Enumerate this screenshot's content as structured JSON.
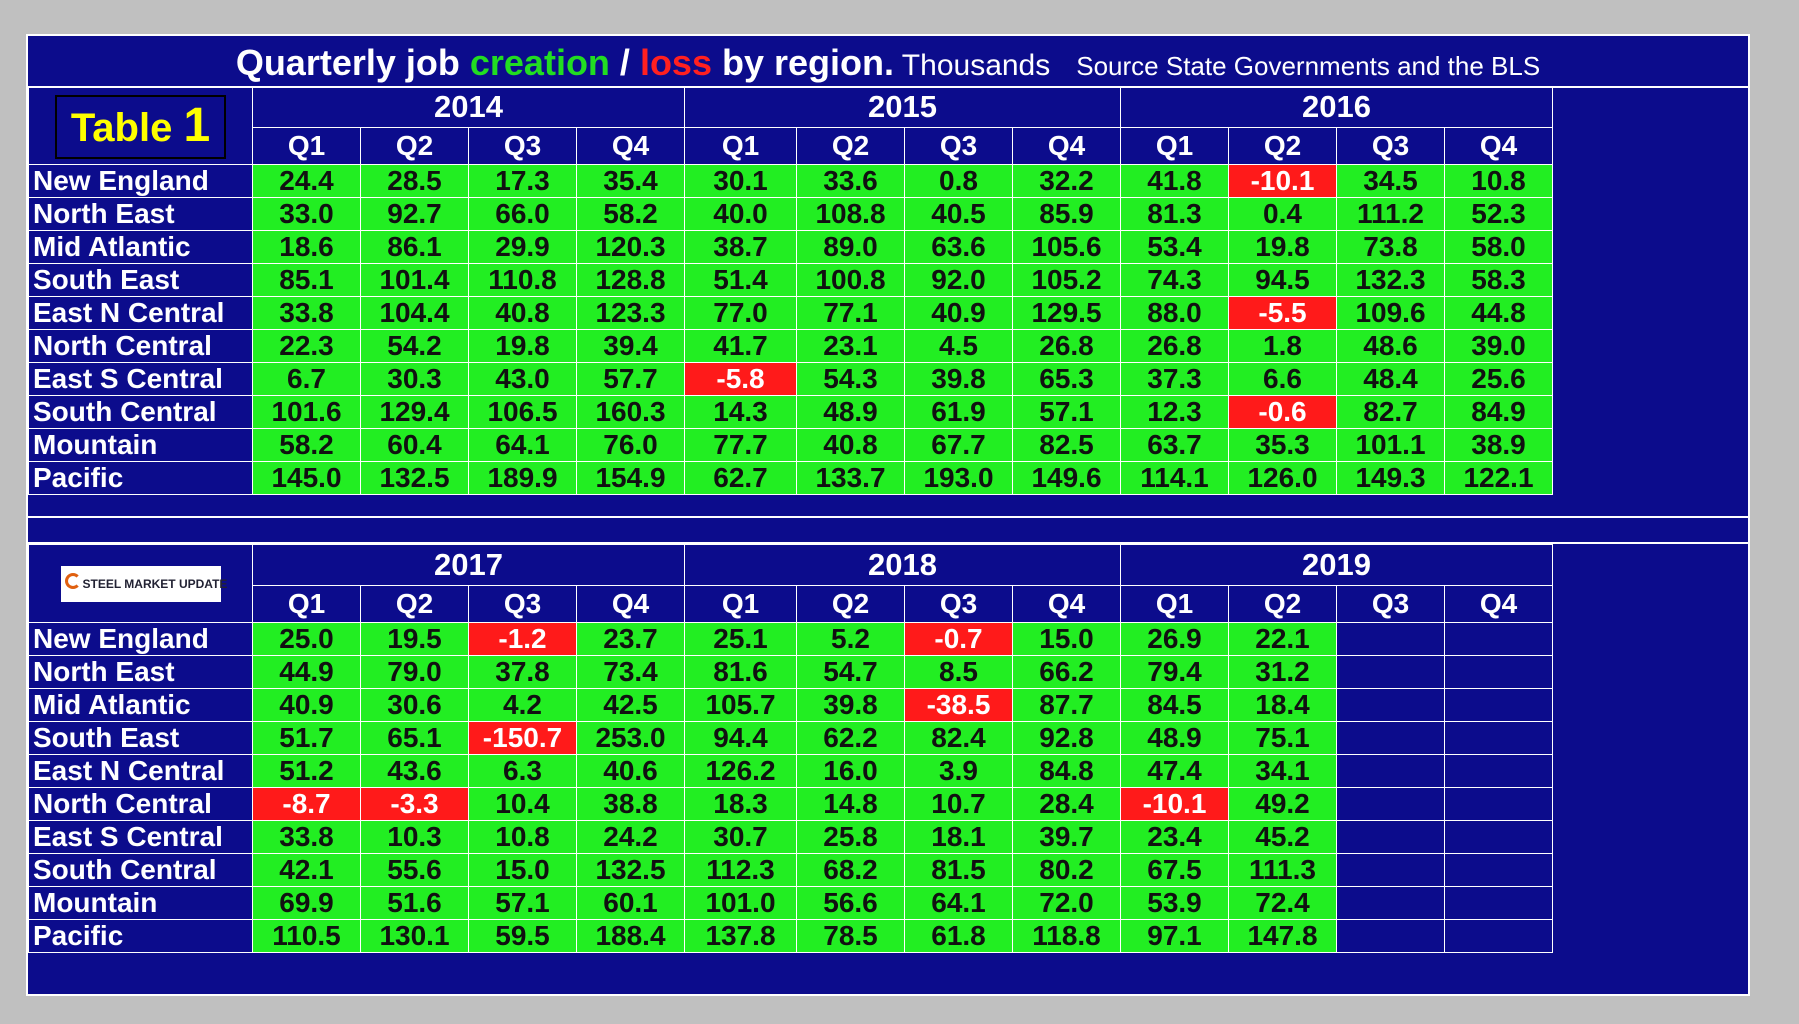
{
  "title": {
    "part1": "Quarterly job ",
    "creation": "creation",
    "slash": " / ",
    "loss": "loss",
    "part2": " by region.",
    "units": " Thousands",
    "source": "Source State Governments and the BLS"
  },
  "colors": {
    "background": "#0c0c8c",
    "positive": "#22ee22",
    "negative": "#ff1a1a",
    "badge_text": "#ffff00"
  },
  "badge": {
    "label": "Table",
    "number": "1"
  },
  "logo": {
    "text": "STEEL MARKET UPDATE"
  },
  "quarters": [
    "Q1",
    "Q2",
    "Q3",
    "Q4"
  ],
  "top": {
    "years": [
      "2014",
      "2015",
      "2016"
    ],
    "rows": [
      {
        "region": "New England",
        "values": [
          "24.4",
          "28.5",
          "17.3",
          "35.4",
          "30.1",
          "33.6",
          "0.8",
          "32.2",
          "41.8",
          "-10.1",
          "34.5",
          "10.8"
        ]
      },
      {
        "region": "North East",
        "values": [
          "33.0",
          "92.7",
          "66.0",
          "58.2",
          "40.0",
          "108.8",
          "40.5",
          "85.9",
          "81.3",
          "0.4",
          "111.2",
          "52.3"
        ]
      },
      {
        "region": "Mid Atlantic",
        "values": [
          "18.6",
          "86.1",
          "29.9",
          "120.3",
          "38.7",
          "89.0",
          "63.6",
          "105.6",
          "53.4",
          "19.8",
          "73.8",
          "58.0"
        ]
      },
      {
        "region": "South East",
        "values": [
          "85.1",
          "101.4",
          "110.8",
          "128.8",
          "51.4",
          "100.8",
          "92.0",
          "105.2",
          "74.3",
          "94.5",
          "132.3",
          "58.3"
        ]
      },
      {
        "region": "East N Central",
        "values": [
          "33.8",
          "104.4",
          "40.8",
          "123.3",
          "77.0",
          "77.1",
          "40.9",
          "129.5",
          "88.0",
          "-5.5",
          "109.6",
          "44.8"
        ]
      },
      {
        "region": "North Central",
        "values": [
          "22.3",
          "54.2",
          "19.8",
          "39.4",
          "41.7",
          "23.1",
          "4.5",
          "26.8",
          "26.8",
          "1.8",
          "48.6",
          "39.0"
        ]
      },
      {
        "region": "East S Central",
        "values": [
          "6.7",
          "30.3",
          "43.0",
          "57.7",
          "-5.8",
          "54.3",
          "39.8",
          "65.3",
          "37.3",
          "6.6",
          "48.4",
          "25.6"
        ]
      },
      {
        "region": "South Central",
        "values": [
          "101.6",
          "129.4",
          "106.5",
          "160.3",
          "14.3",
          "48.9",
          "61.9",
          "57.1",
          "12.3",
          "-0.6",
          "82.7",
          "84.9"
        ]
      },
      {
        "region": "Mountain",
        "values": [
          "58.2",
          "60.4",
          "64.1",
          "76.0",
          "77.7",
          "40.8",
          "67.7",
          "82.5",
          "63.7",
          "35.3",
          "101.1",
          "38.9"
        ]
      },
      {
        "region": "Pacific",
        "values": [
          "145.0",
          "132.5",
          "189.9",
          "154.9",
          "62.7",
          "133.7",
          "193.0",
          "149.6",
          "114.1",
          "126.0",
          "149.3",
          "122.1"
        ]
      }
    ]
  },
  "bottom": {
    "years": [
      "2017",
      "2018",
      "2019"
    ],
    "rows": [
      {
        "region": "New England",
        "values": [
          "25.0",
          "19.5",
          "-1.2",
          "23.7",
          "25.1",
          "5.2",
          "-0.7",
          "15.0",
          "26.9",
          "22.1",
          "",
          ""
        ]
      },
      {
        "region": "North East",
        "values": [
          "44.9",
          "79.0",
          "37.8",
          "73.4",
          "81.6",
          "54.7",
          "8.5",
          "66.2",
          "79.4",
          "31.2",
          "",
          ""
        ]
      },
      {
        "region": "Mid Atlantic",
        "values": [
          "40.9",
          "30.6",
          "4.2",
          "42.5",
          "105.7",
          "39.8",
          "-38.5",
          "87.7",
          "84.5",
          "18.4",
          "",
          ""
        ]
      },
      {
        "region": "South East",
        "values": [
          "51.7",
          "65.1",
          "-150.7",
          "253.0",
          "94.4",
          "62.2",
          "82.4",
          "92.8",
          "48.9",
          "75.1",
          "",
          ""
        ]
      },
      {
        "region": "East N Central",
        "values": [
          "51.2",
          "43.6",
          "6.3",
          "40.6",
          "126.2",
          "16.0",
          "3.9",
          "84.8",
          "47.4",
          "34.1",
          "",
          ""
        ]
      },
      {
        "region": "North Central",
        "values": [
          "-8.7",
          "-3.3",
          "10.4",
          "38.8",
          "18.3",
          "14.8",
          "10.7",
          "28.4",
          "-10.1",
          "49.2",
          "",
          ""
        ]
      },
      {
        "region": "East S Central",
        "values": [
          "33.8",
          "10.3",
          "10.8",
          "24.2",
          "30.7",
          "25.8",
          "18.1",
          "39.7",
          "23.4",
          "45.2",
          "",
          ""
        ]
      },
      {
        "region": "South Central",
        "values": [
          "42.1",
          "55.6",
          "15.0",
          "132.5",
          "112.3",
          "68.2",
          "81.5",
          "80.2",
          "67.5",
          "111.3",
          "",
          ""
        ]
      },
      {
        "region": "Mountain",
        "values": [
          "69.9",
          "51.6",
          "57.1",
          "60.1",
          "101.0",
          "56.6",
          "64.1",
          "72.0",
          "53.9",
          "72.4",
          "",
          ""
        ]
      },
      {
        "region": "Pacific",
        "values": [
          "110.5",
          "130.1",
          "59.5",
          "188.4",
          "137.8",
          "78.5",
          "61.8",
          "118.8",
          "97.1",
          "147.8",
          "",
          ""
        ]
      }
    ]
  }
}
